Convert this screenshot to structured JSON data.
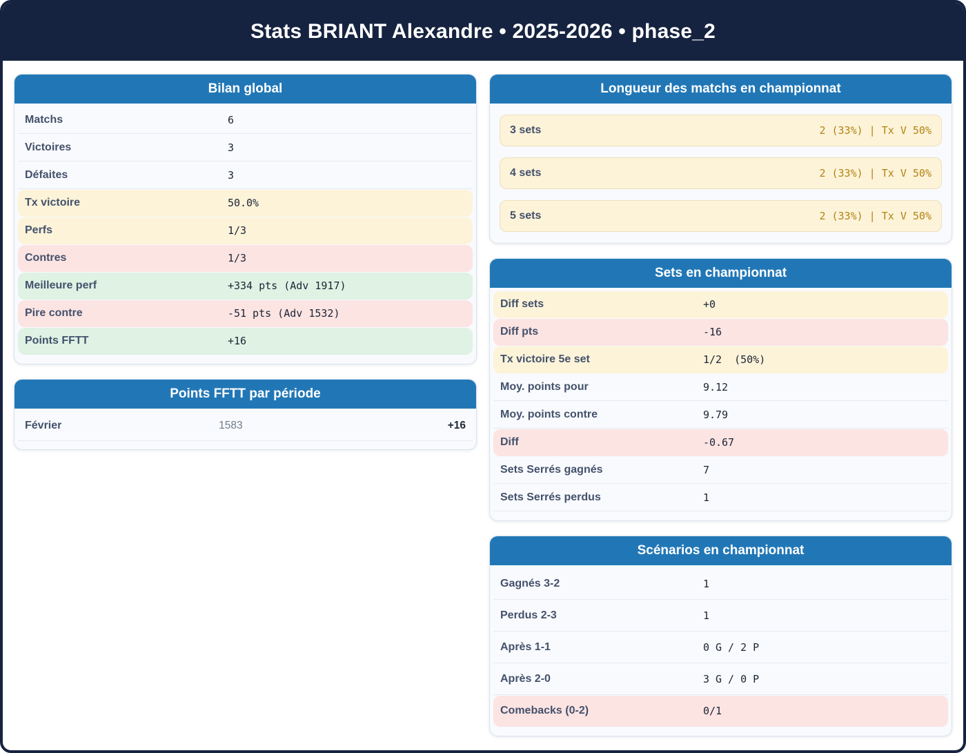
{
  "title": "Stats BRIANT Alexandre • 2025-2026 • phase_2",
  "colors": {
    "banner_navy": "#162340",
    "card_header_blue": "#2177b6",
    "highlight_yellow": "#fcf3d9",
    "highlight_pink": "#fce4e3",
    "highlight_green": "#dff2e4",
    "amber_value_text": "#b38312",
    "label_slate": "#44516b",
    "value_dark": "#1c2433"
  },
  "cards": {
    "bilan": {
      "title": "Bilan global",
      "rows": [
        {
          "label": "Matchs",
          "value": "6",
          "tone": "plain"
        },
        {
          "label": "Victoires",
          "value": "3",
          "tone": "plain"
        },
        {
          "label": "Défaites",
          "value": "3",
          "tone": "plain"
        },
        {
          "label": "Tx victoire",
          "value": "50.0%",
          "tone": "warn"
        },
        {
          "label": "Perfs",
          "value": "1/3",
          "tone": "warn"
        },
        {
          "label": "Contres",
          "value": "1/3",
          "tone": "bad"
        },
        {
          "label": "Meilleure perf",
          "value": "+334 pts (Adv 1917)",
          "tone": "good"
        },
        {
          "label": "Pire contre",
          "value": "-51 pts (Adv 1532)",
          "tone": "bad"
        },
        {
          "label": "Points FFTT",
          "value": "+16",
          "tone": "good"
        }
      ]
    },
    "points_periode": {
      "title": "Points FFTT par période",
      "rows": [
        {
          "label": "Février",
          "points": "1583",
          "delta": "+16"
        }
      ]
    },
    "longueur": {
      "title": "Longueur des matchs en championnat",
      "rows": [
        {
          "label": "3 sets",
          "value": "2 (33%) | Tx V 50%"
        },
        {
          "label": "4 sets",
          "value": "2 (33%) | Tx V 50%"
        },
        {
          "label": "5 sets",
          "value": "2 (33%) | Tx V 50%"
        }
      ]
    },
    "sets": {
      "title": "Sets en championnat",
      "rows": [
        {
          "label": "Diff sets",
          "value": "+0",
          "tone": "warn"
        },
        {
          "label": "Diff pts",
          "value": "-16",
          "tone": "bad"
        },
        {
          "label": "Tx victoire 5e set",
          "value": "1/2  (50%)",
          "tone": "warn"
        },
        {
          "label": "Moy. points pour",
          "value": "9.12",
          "tone": "plain"
        },
        {
          "label": "Moy. points contre",
          "value": "9.79",
          "tone": "plain"
        },
        {
          "label": "Diff",
          "value": "-0.67",
          "tone": "bad"
        },
        {
          "label": "Sets Serrés gagnés",
          "value": "7",
          "tone": "plain"
        },
        {
          "label": "Sets Serrés perdus",
          "value": "1",
          "tone": "plain"
        }
      ]
    },
    "scenarios": {
      "title": "Scénarios en championnat",
      "rows": [
        {
          "label": "Gagnés 3-2",
          "value": "1",
          "tone": "plain"
        },
        {
          "label": "Perdus 2-3",
          "value": "1",
          "tone": "plain"
        },
        {
          "label": "Après 1-1",
          "value": "0 G / 2 P",
          "tone": "plain"
        },
        {
          "label": "Après 2-0",
          "value": "3 G / 0 P",
          "tone": "plain"
        },
        {
          "label": "Comebacks (0-2)",
          "value": "0/1",
          "tone": "bad"
        }
      ]
    }
  }
}
